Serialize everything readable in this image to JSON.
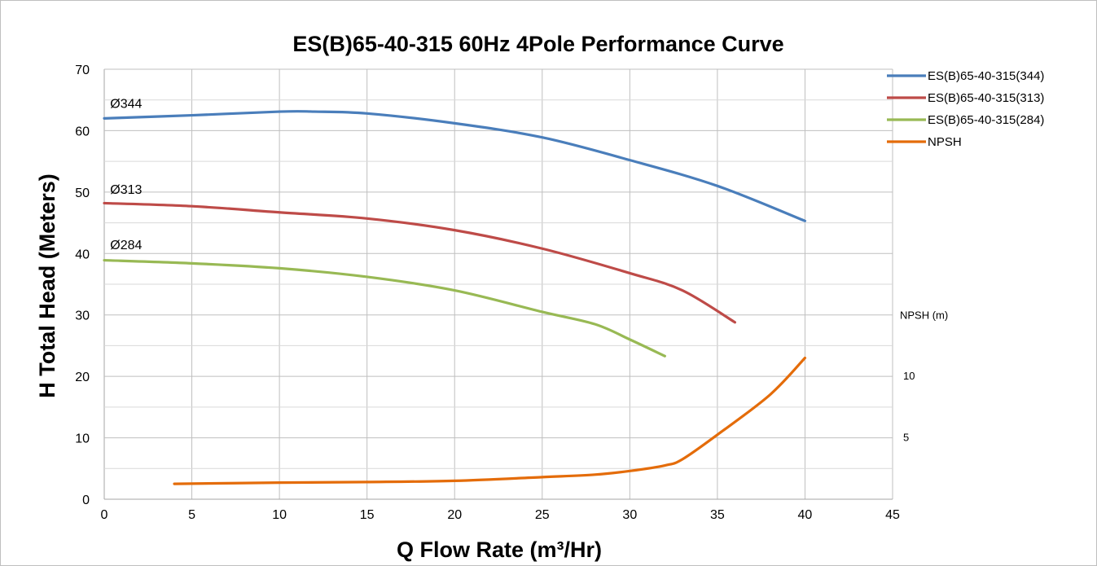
{
  "chart_data": {
    "type": "line",
    "title": "ES(B)65-40-315 60Hz 4Pole Performance Curve",
    "xlabel": "Q  Flow Rate  (m³/Hr)",
    "ylabel": "H  Total Head  (Meters)",
    "xlim": [
      0,
      45
    ],
    "ylim": [
      0,
      70
    ],
    "x_ticks": [
      "0",
      "5",
      "10",
      "15",
      "20",
      "25",
      "30",
      "35",
      "40",
      "45"
    ],
    "y_ticks": [
      "0",
      "10",
      "20",
      "30",
      "40",
      "50",
      "60",
      "70"
    ],
    "grid": true,
    "legend_position": "right",
    "secondary_axis": {
      "label": "NPSH (m)",
      "ticks": [
        "10",
        "5"
      ],
      "tick_heads": [
        20,
        10
      ]
    },
    "annotations": [
      {
        "text": "Ø344",
        "x": 0.2,
        "y": 64.5
      },
      {
        "text": "Ø313",
        "x": 0.2,
        "y": 50.5
      },
      {
        "text": "Ø284",
        "x": 0.2,
        "y": 41.5
      }
    ],
    "series": [
      {
        "name": "ES(B)65-40-315(344)",
        "color": "#4a7ebb",
        "x": [
          0,
          5,
          10,
          12,
          15,
          20,
          25,
          30,
          35,
          40
        ],
        "y": [
          62.0,
          62.5,
          63.1,
          63.1,
          62.8,
          61.2,
          58.9,
          55.2,
          51.0,
          45.3
        ]
      },
      {
        "name": "ES(B)65-40-315(313)",
        "color": "#be4b48",
        "x": [
          0,
          5,
          10,
          15,
          20,
          25,
          30,
          33,
          36
        ],
        "y": [
          48.2,
          47.7,
          46.7,
          45.7,
          43.8,
          40.8,
          36.8,
          34.0,
          28.8
        ]
      },
      {
        "name": "ES(B)65-40-315(284)",
        "color": "#98b954",
        "x": [
          0,
          5,
          10,
          15,
          20,
          25,
          28,
          30,
          32
        ],
        "y": [
          38.9,
          38.4,
          37.6,
          36.2,
          34.0,
          30.5,
          28.5,
          26.0,
          23.3
        ]
      },
      {
        "name": "NPSH",
        "color": "#e46c0a",
        "x": [
          4,
          10,
          15,
          20,
          25,
          28,
          30,
          32,
          33,
          35,
          38,
          40
        ],
        "y": [
          2.5,
          2.7,
          2.8,
          3.0,
          3.6,
          4.0,
          4.6,
          5.5,
          6.5,
          10.5,
          17.0,
          23.0
        ]
      }
    ]
  }
}
